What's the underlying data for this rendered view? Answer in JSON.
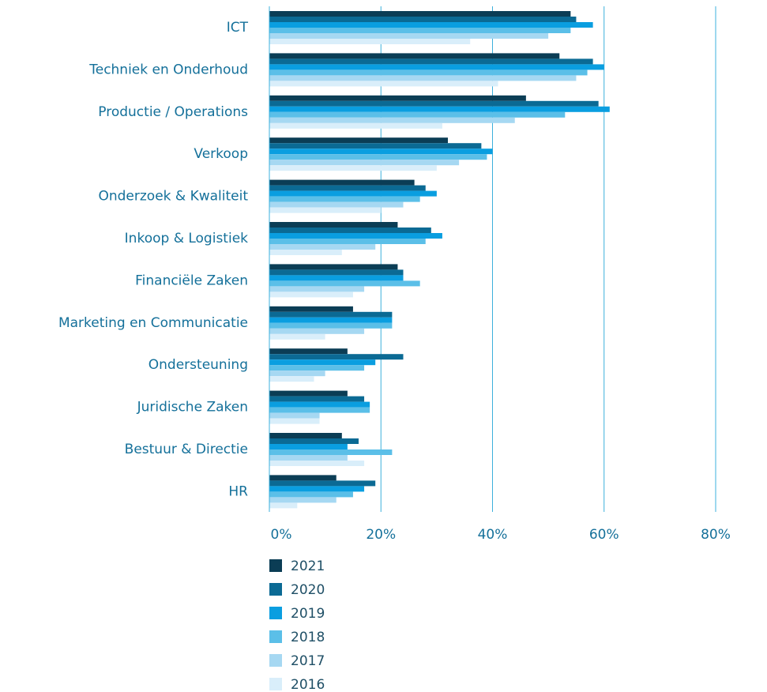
{
  "chart_data": {
    "type": "barh",
    "categories": [
      "ICT",
      "Techniek en Onderhoud",
      "Productie / Operations",
      "Verkoop",
      "Onderzoek & Kwaliteit",
      "Inkoop & Logistiek",
      "Financiële Zaken",
      "Marketing en Communicatie",
      "Ondersteuning",
      "Juridische Zaken",
      "Bestuur & Directie",
      "HR"
    ],
    "series": [
      {
        "name": "2021",
        "color": "#0b3d55",
        "values": [
          54,
          52,
          46,
          32,
          26,
          23,
          23,
          15,
          14,
          14,
          13,
          12
        ]
      },
      {
        "name": "2020",
        "color": "#0b6a94",
        "values": [
          55,
          58,
          59,
          38,
          28,
          29,
          24,
          22,
          24,
          17,
          16,
          19
        ]
      },
      {
        "name": "2019",
        "color": "#0a9ee0",
        "values": [
          58,
          60,
          61,
          40,
          30,
          31,
          24,
          22,
          19,
          18,
          14,
          17
        ]
      },
      {
        "name": "2018",
        "color": "#5bbfe8",
        "values": [
          54,
          57,
          53,
          39,
          27,
          28,
          27,
          22,
          17,
          18,
          22,
          15
        ]
      },
      {
        "name": "2017",
        "color": "#a6d8f2",
        "values": [
          50,
          55,
          44,
          34,
          24,
          19,
          17,
          17,
          10,
          9,
          14,
          12
        ]
      },
      {
        "name": "2016",
        "color": "#d9eefa",
        "values": [
          36,
          41,
          31,
          30,
          20,
          13,
          15,
          10,
          8,
          9,
          17,
          5
        ]
      }
    ],
    "xlim": [
      0,
      80
    ],
    "xticks": [
      {
        "value": 0,
        "label": "0%"
      },
      {
        "value": 20,
        "label": "20%"
      },
      {
        "value": 40,
        "label": "40%"
      },
      {
        "value": 60,
        "label": "60%"
      },
      {
        "value": 80,
        "label": "80%"
      }
    ],
    "grid": true
  }
}
